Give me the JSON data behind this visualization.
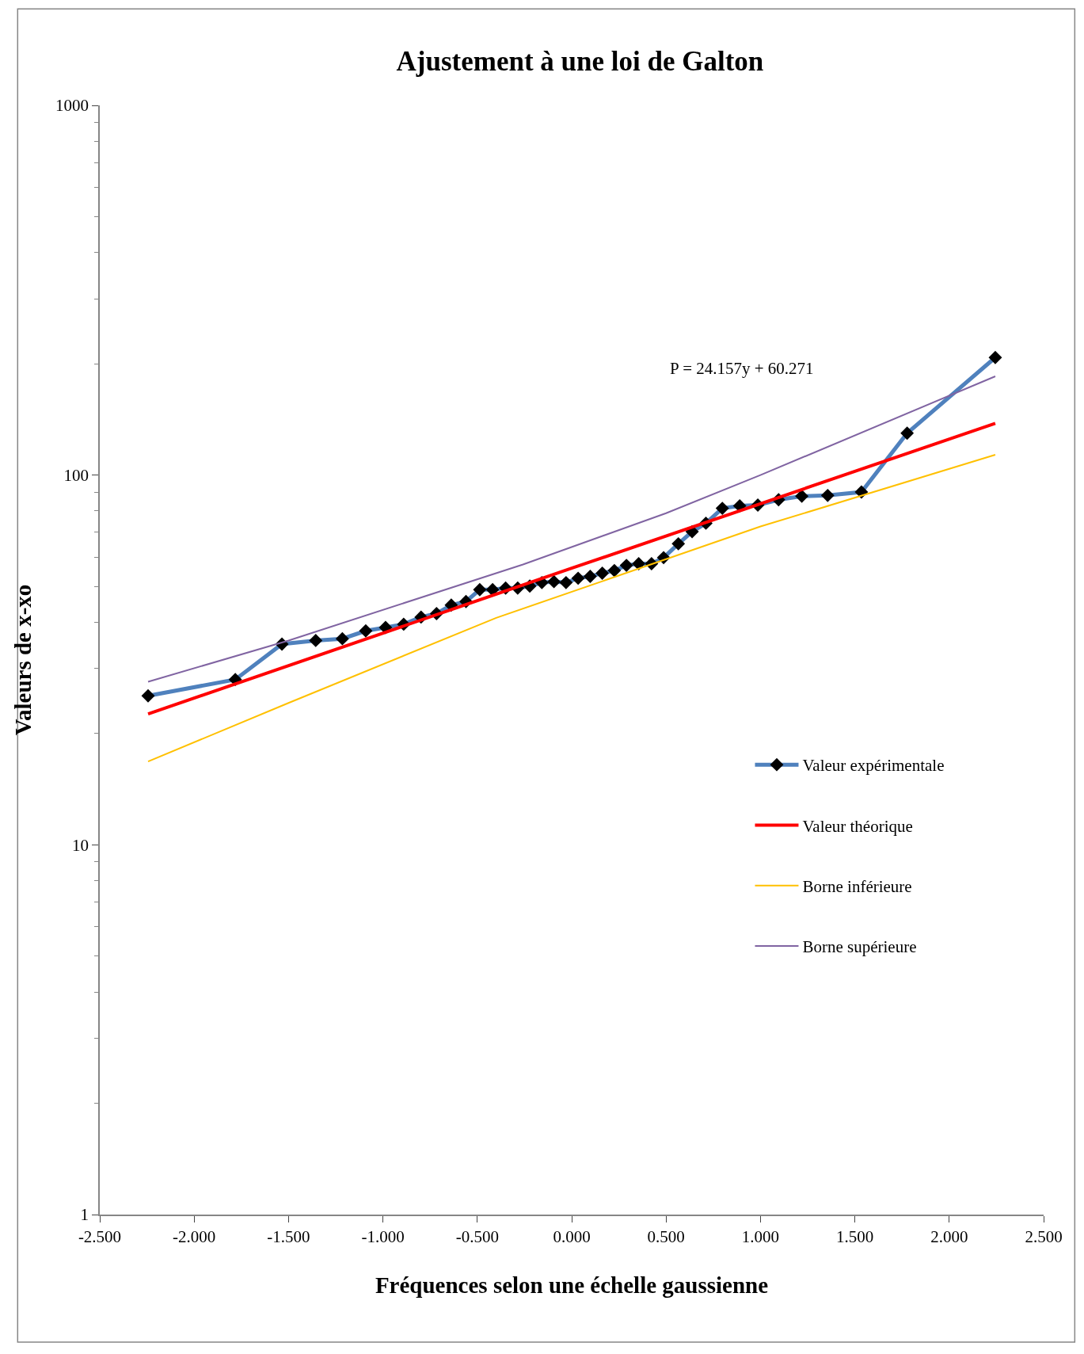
{
  "chart_data": {
    "type": "line",
    "title": "Ajustement à une loi de Galton",
    "xlabel": "Fréquences selon une échelle gaussienne",
    "ylabel": "Valeurs de x-xo",
    "annotations": [
      "P = 24.157y + 60.271"
    ],
    "log": "y",
    "grid": false,
    "legend": "right",
    "xlim": [
      -2.5,
      2.5
    ],
    "xticks": [
      {
        "value": -2.5,
        "label": "-2.500"
      },
      {
        "value": -2,
        "label": "-2.000"
      },
      {
        "value": -1.5,
        "label": "-1.500"
      },
      {
        "value": -1,
        "label": "-1.000"
      },
      {
        "value": -0.5,
        "label": "-0.500"
      },
      {
        "value": 0,
        "label": "0.000"
      },
      {
        "value": 0.5,
        "label": "0.500"
      },
      {
        "value": 1,
        "label": "1.000"
      },
      {
        "value": 1.5,
        "label": "1.500"
      },
      {
        "value": 2,
        "label": "2.000"
      },
      {
        "value": 2.5,
        "label": "2.500"
      }
    ],
    "ylim": [
      1,
      1000
    ],
    "yticks": [
      1,
      10,
      100,
      1000
    ],
    "series": [
      {
        "name": "Valeur expérimentale",
        "color": "#4f81bd",
        "marker": "diamond",
        "x": [
          -2.244,
          -1.782,
          -1.535,
          -1.356,
          -1.215,
          -1.091,
          -0.986,
          -0.89,
          -0.798,
          -0.716,
          -0.638,
          -0.56,
          -0.487,
          -0.419,
          -0.35,
          -0.286,
          -0.222,
          -0.158,
          -0.094,
          -0.03,
          0.034,
          0.098,
          0.162,
          0.226,
          0.29,
          0.355,
          0.423,
          0.487,
          0.565,
          0.638,
          0.711,
          0.798,
          0.89,
          0.986,
          1.096,
          1.219,
          1.356,
          1.535,
          1.777,
          2.244
        ],
        "values": [
          25.3,
          28.0,
          34.9,
          35.7,
          36.1,
          37.9,
          38.7,
          39.5,
          41.3,
          42.2,
          44.5,
          45.5,
          49.0,
          49.0,
          49.5,
          49.5,
          50.1,
          51.2,
          51.5,
          51.2,
          52.6,
          53.2,
          54.3,
          55.2,
          57.0,
          57.6,
          57.6,
          59.8,
          65.2,
          70.3,
          74.1,
          81.3,
          82.6,
          83.0,
          85.8,
          87.7,
          88.1,
          90.0,
          129.8,
          208
        ]
      },
      {
        "name": "Valeur théorique",
        "color": "#ff0000",
        "marker": "none",
        "x": [
          -2.244,
          0,
          2.244
        ],
        "values": [
          22.6,
          56.0,
          138
        ]
      },
      {
        "name": "Borne inférieure",
        "color": "#ffc000",
        "marker": "none",
        "x": [
          -2.244,
          -1.5,
          -0.4,
          0.3,
          1.0,
          2.244
        ],
        "values": [
          16.8,
          24.2,
          41.1,
          54.6,
          72.6,
          113.5
        ]
      },
      {
        "name": "Borne supérieure",
        "color": "#8064a2",
        "marker": "none",
        "x": [
          -2.244,
          -1.5,
          -0.258,
          0.5,
          1.0,
          2.244
        ],
        "values": [
          27.6,
          35.7,
          57.3,
          78.9,
          100,
          185
        ]
      }
    ]
  }
}
